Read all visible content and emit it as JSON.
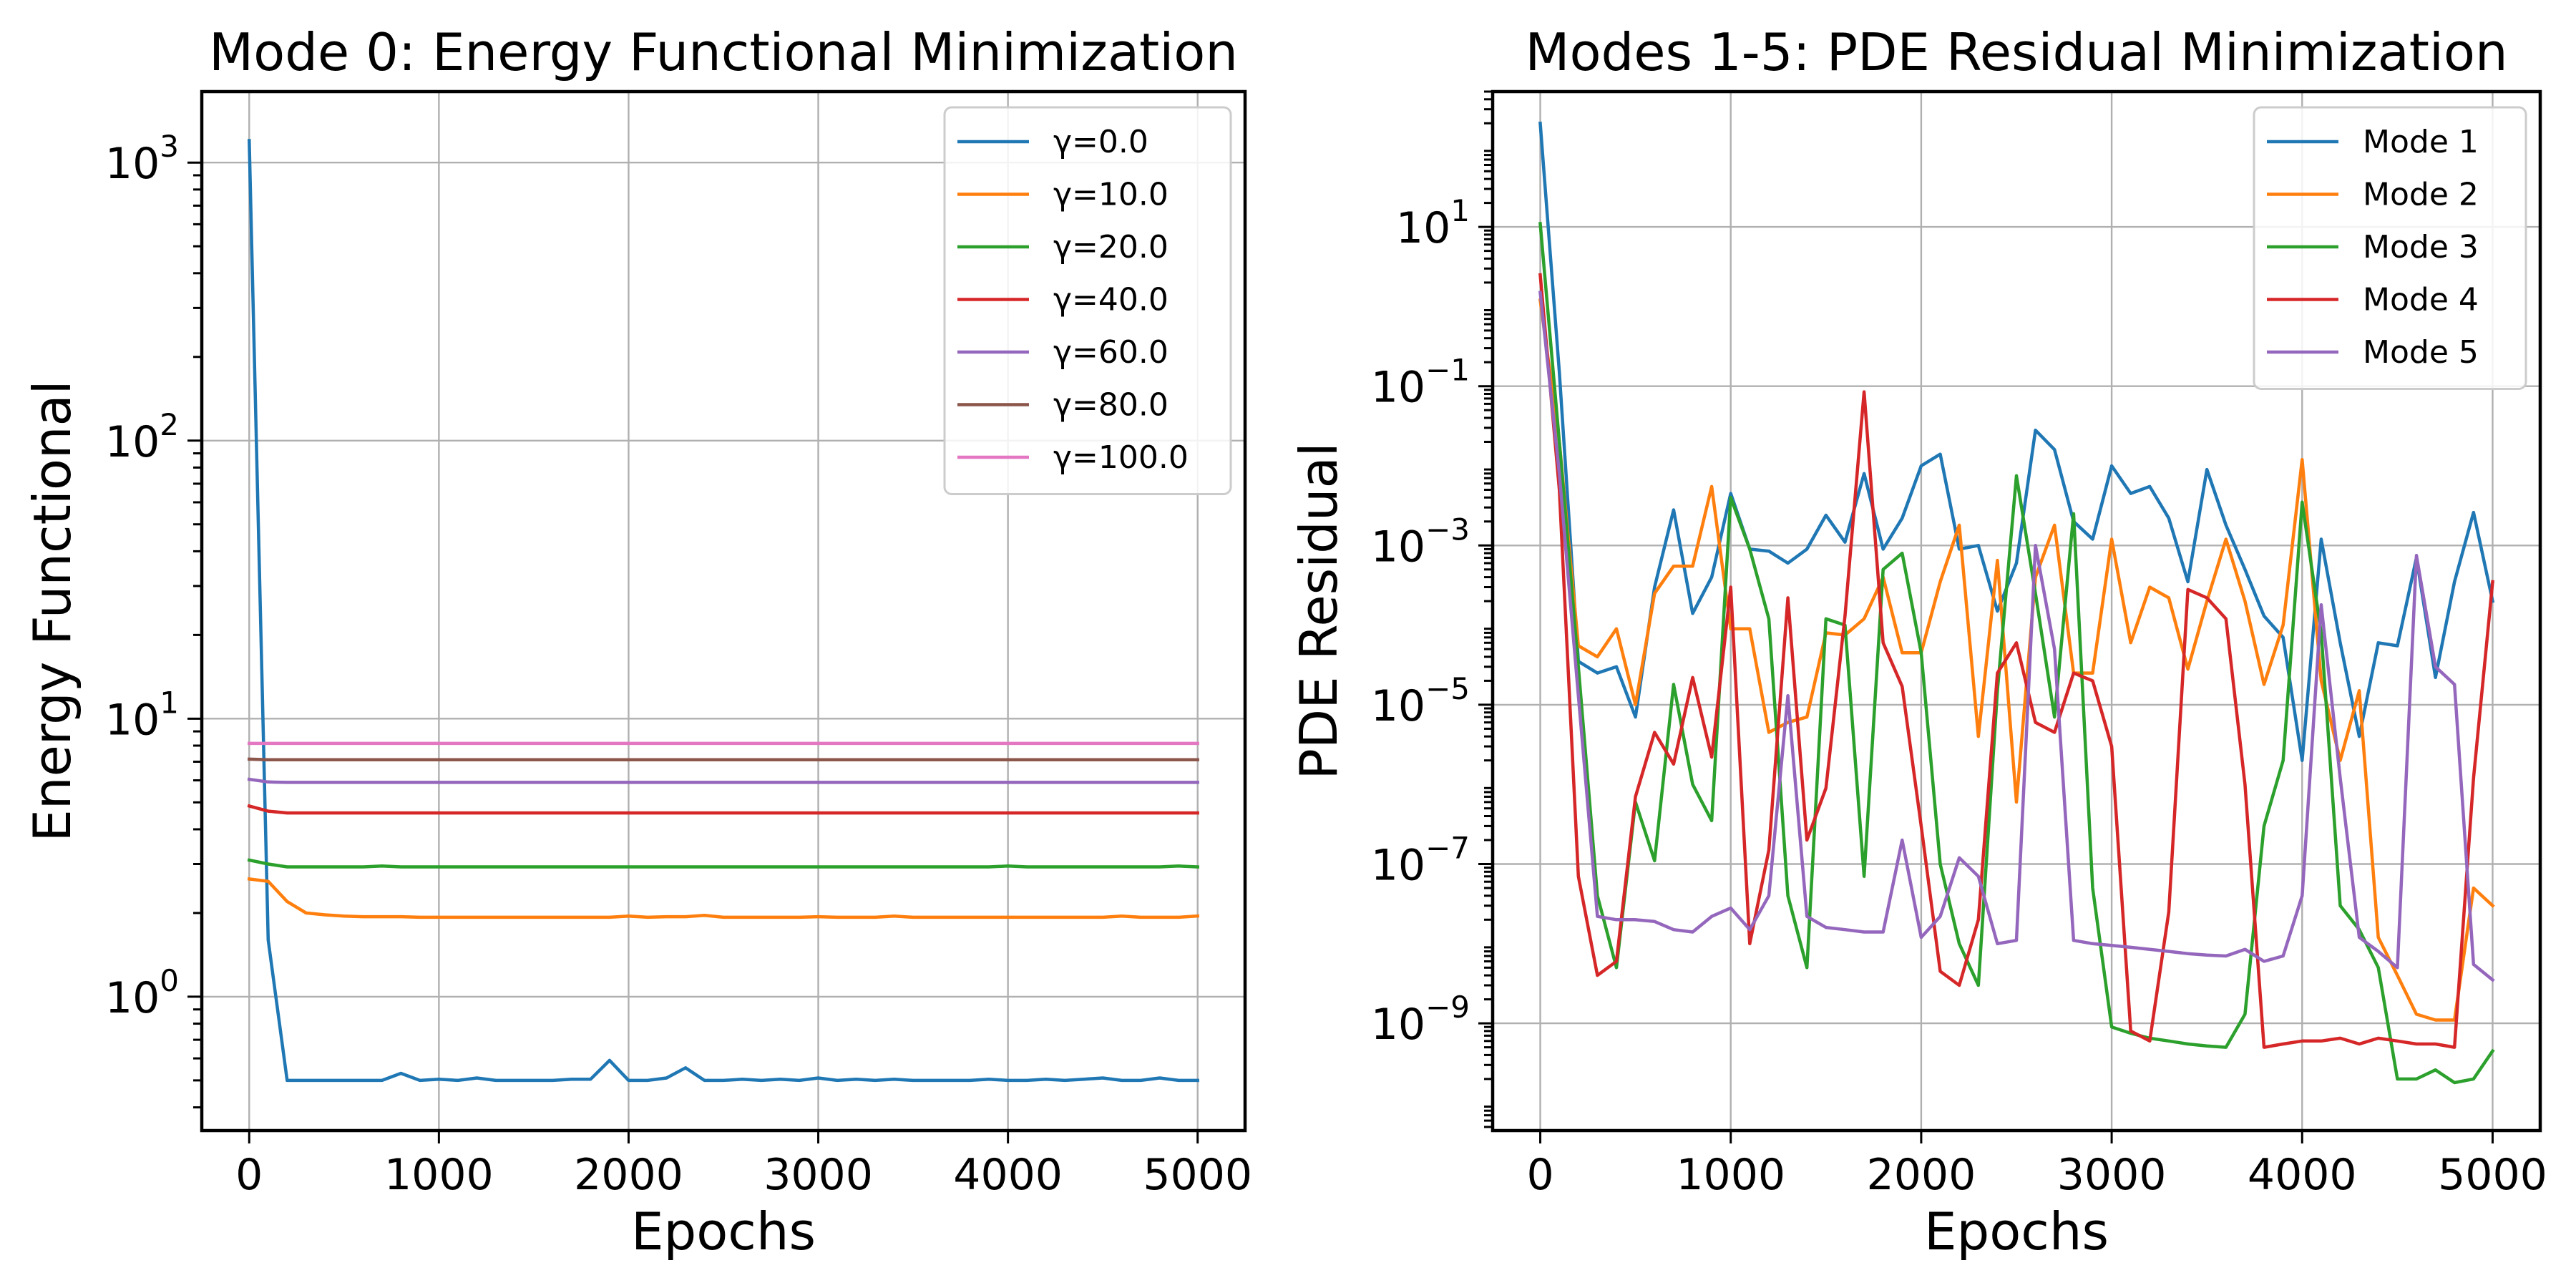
{
  "chart_data": [
    {
      "type": "line",
      "title": "Mode 0: Energy Functional Minimization",
      "xlabel": "Epochs",
      "ylabel": "Energy Functional",
      "yscale": "log",
      "xlim": [
        -250,
        5250
      ],
      "ylim": [
        0.33,
        1800
      ],
      "xticks": [
        0,
        1000,
        2000,
        3000,
        4000,
        5000
      ],
      "xtick_labels": [
        "0",
        "1000",
        "2000",
        "3000",
        "4000",
        "5000"
      ],
      "yticks_exp": [
        0,
        1,
        2,
        3
      ],
      "grid": true,
      "legend_position": "top-right",
      "x": [
        0,
        100,
        200,
        300,
        400,
        500,
        600,
        700,
        800,
        900,
        1000,
        1100,
        1200,
        1300,
        1400,
        1500,
        1600,
        1700,
        1800,
        1900,
        2000,
        2100,
        2200,
        2300,
        2400,
        2500,
        2600,
        2700,
        2800,
        2900,
        3000,
        3100,
        3200,
        3300,
        3400,
        3500,
        3600,
        3700,
        3800,
        3900,
        4000,
        4100,
        4200,
        4300,
        4400,
        4500,
        4600,
        4700,
        4800,
        4900,
        5000
      ],
      "series": [
        {
          "name": "γ=0.0",
          "color": "#1f77b4",
          "values": [
            1200,
            1.6,
            0.5,
            0.5,
            0.5,
            0.5,
            0.5,
            0.5,
            0.53,
            0.5,
            0.505,
            0.5,
            0.51,
            0.5,
            0.5,
            0.5,
            0.5,
            0.505,
            0.505,
            0.59,
            0.5,
            0.5,
            0.51,
            0.555,
            0.5,
            0.5,
            0.505,
            0.5,
            0.505,
            0.5,
            0.51,
            0.5,
            0.505,
            0.5,
            0.505,
            0.5,
            0.5,
            0.5,
            0.5,
            0.505,
            0.5,
            0.5,
            0.505,
            0.5,
            0.505,
            0.51,
            0.5,
            0.5,
            0.51,
            0.5,
            0.5
          ]
        },
        {
          "name": "γ=10.0",
          "color": "#ff7f0e",
          "values": [
            2.65,
            2.6,
            2.2,
            2.0,
            1.97,
            1.95,
            1.94,
            1.94,
            1.94,
            1.93,
            1.93,
            1.93,
            1.93,
            1.93,
            1.93,
            1.93,
            1.93,
            1.93,
            1.93,
            1.93,
            1.95,
            1.93,
            1.94,
            1.94,
            1.96,
            1.93,
            1.93,
            1.93,
            1.93,
            1.93,
            1.94,
            1.93,
            1.93,
            1.93,
            1.95,
            1.93,
            1.93,
            1.93,
            1.93,
            1.93,
            1.93,
            1.93,
            1.93,
            1.93,
            1.93,
            1.93,
            1.95,
            1.93,
            1.93,
            1.93,
            1.95
          ]
        },
        {
          "name": "γ=20.0",
          "color": "#2ca02c",
          "values": [
            3.1,
            3.0,
            2.93,
            2.93,
            2.93,
            2.93,
            2.93,
            2.95,
            2.93,
            2.93,
            2.93,
            2.93,
            2.93,
            2.93,
            2.93,
            2.93,
            2.93,
            2.93,
            2.93,
            2.93,
            2.93,
            2.93,
            2.93,
            2.93,
            2.93,
            2.93,
            2.93,
            2.93,
            2.93,
            2.93,
            2.93,
            2.93,
            2.93,
            2.93,
            2.93,
            2.93,
            2.93,
            2.93,
            2.93,
            2.93,
            2.95,
            2.93,
            2.93,
            2.93,
            2.93,
            2.93,
            2.93,
            2.93,
            2.93,
            2.95,
            2.93
          ]
        },
        {
          "name": "γ=40.0",
          "color": "#d62728",
          "values": [
            4.85,
            4.65,
            4.58,
            4.58,
            4.58,
            4.58,
            4.58,
            4.58,
            4.58,
            4.58,
            4.58,
            4.58,
            4.58,
            4.58,
            4.58,
            4.58,
            4.58,
            4.58,
            4.58,
            4.58,
            4.58,
            4.58,
            4.58,
            4.58,
            4.58,
            4.58,
            4.58,
            4.58,
            4.58,
            4.58,
            4.58,
            4.58,
            4.58,
            4.58,
            4.58,
            4.58,
            4.58,
            4.58,
            4.58,
            4.58,
            4.58,
            4.58,
            4.58,
            4.58,
            4.58,
            4.58,
            4.58,
            4.58,
            4.58,
            4.58,
            4.58
          ]
        },
        {
          "name": "γ=60.0",
          "color": "#9467bd",
          "values": [
            6.05,
            5.92,
            5.9,
            5.9,
            5.9,
            5.9,
            5.9,
            5.9,
            5.9,
            5.9,
            5.9,
            5.9,
            5.9,
            5.9,
            5.9,
            5.9,
            5.9,
            5.9,
            5.9,
            5.9,
            5.9,
            5.9,
            5.9,
            5.9,
            5.9,
            5.9,
            5.9,
            5.9,
            5.9,
            5.9,
            5.9,
            5.9,
            5.9,
            5.9,
            5.9,
            5.9,
            5.9,
            5.9,
            5.9,
            5.9,
            5.9,
            5.9,
            5.9,
            5.9,
            5.9,
            5.9,
            5.9,
            5.9,
            5.9,
            5.9,
            5.9
          ]
        },
        {
          "name": "γ=80.0",
          "color": "#8c564b",
          "values": [
            7.15,
            7.12,
            7.12,
            7.12,
            7.12,
            7.12,
            7.12,
            7.12,
            7.12,
            7.12,
            7.12,
            7.12,
            7.12,
            7.12,
            7.12,
            7.12,
            7.12,
            7.12,
            7.12,
            7.12,
            7.12,
            7.12,
            7.12,
            7.12,
            7.12,
            7.12,
            7.12,
            7.12,
            7.12,
            7.12,
            7.12,
            7.12,
            7.12,
            7.12,
            7.12,
            7.12,
            7.12,
            7.12,
            7.12,
            7.12,
            7.12,
            7.12,
            7.12,
            7.12,
            7.12,
            7.12,
            7.12,
            7.12,
            7.12,
            7.12,
            7.12
          ]
        },
        {
          "name": "γ=100.0",
          "color": "#e377c2",
          "values": [
            8.15,
            8.15,
            8.15,
            8.15,
            8.15,
            8.15,
            8.15,
            8.15,
            8.15,
            8.15,
            8.15,
            8.15,
            8.15,
            8.15,
            8.15,
            8.15,
            8.15,
            8.15,
            8.15,
            8.15,
            8.15,
            8.15,
            8.15,
            8.15,
            8.15,
            8.15,
            8.15,
            8.15,
            8.15,
            8.15,
            8.15,
            8.15,
            8.15,
            8.15,
            8.15,
            8.15,
            8.15,
            8.15,
            8.15,
            8.15,
            8.15,
            8.15,
            8.15,
            8.15,
            8.15,
            8.15,
            8.15,
            8.15,
            8.15,
            8.15,
            8.15
          ]
        }
      ]
    },
    {
      "type": "line",
      "title": "Modes 1-5: PDE Residual Minimization",
      "xlabel": "Epochs",
      "ylabel": "PDE Residual",
      "yscale": "log",
      "xlim": [
        -250,
        5250
      ],
      "ylim": [
        4.5e-11,
        500
      ],
      "xticks": [
        0,
        1000,
        2000,
        3000,
        4000,
        5000
      ],
      "xtick_labels": [
        "0",
        "1000",
        "2000",
        "3000",
        "4000",
        "5000"
      ],
      "yticks_exp": [
        -9,
        -7,
        -5,
        -3,
        -1,
        1
      ],
      "grid": true,
      "legend_position": "top-right",
      "x": [
        0,
        100,
        200,
        300,
        400,
        500,
        600,
        700,
        800,
        900,
        1000,
        1100,
        1200,
        1300,
        1400,
        1500,
        1600,
        1700,
        1800,
        1900,
        2000,
        2100,
        2200,
        2300,
        2400,
        2500,
        2600,
        2700,
        2800,
        2900,
        3000,
        3100,
        3200,
        3300,
        3400,
        3500,
        3600,
        3700,
        3800,
        3900,
        4000,
        4100,
        4200,
        4300,
        4400,
        4500,
        4600,
        4700,
        4800,
        4900,
        5000
      ],
      "series": [
        {
          "name": "Mode 1",
          "color": "#1f77b4",
          "values": [
            200,
            0.15,
            3.5e-05,
            2.5e-05,
            3e-05,
            7e-06,
            0.0003,
            0.0028,
            0.00014,
            0.0004,
            0.0045,
            0.0009,
            0.00085,
            0.0006,
            0.0009,
            0.0024,
            0.0011,
            0.008,
            0.0009,
            0.0022,
            0.01,
            0.014,
            0.0009,
            0.001,
            0.00015,
            0.0006,
            0.028,
            0.016,
            0.002,
            0.0012,
            0.01,
            0.0045,
            0.0055,
            0.0022,
            0.00035,
            0.009,
            0.0018,
            0.0005,
            0.00013,
            7e-05,
            2e-06,
            0.0012,
            6e-05,
            4e-06,
            6e-05,
            5.5e-05,
            0.0007,
            2.2e-05,
            0.00035,
            0.0026,
            0.0002
          ]
        },
        {
          "name": "Mode 2",
          "color": "#ff7f0e",
          "values": [
            1.2,
            0.02,
            5.5e-05,
            4e-05,
            9e-05,
            1e-05,
            0.00025,
            0.00055,
            0.00055,
            0.0055,
            9e-05,
            9e-05,
            4.5e-06,
            6e-06,
            7e-06,
            8e-05,
            7.5e-05,
            0.00012,
            0.0004,
            4.5e-05,
            4.5e-05,
            0.00035,
            0.0018,
            4e-06,
            0.00065,
            6e-07,
            0.0004,
            0.0018,
            2.5e-05,
            2.5e-05,
            0.0012,
            6e-05,
            0.0003,
            0.00022,
            2.8e-05,
            0.0002,
            0.0012,
            0.0002,
            1.8e-05,
            0.0001,
            0.012,
            2e-05,
            2e-06,
            1.5e-05,
            1.2e-08,
            4e-09,
            1.3e-09,
            1.1e-09,
            1.1e-09,
            5e-08,
            3e-08
          ]
        },
        {
          "name": "Mode 3",
          "color": "#2ca02c",
          "values": [
            11,
            0.02,
            3e-05,
            4e-08,
            5e-09,
            6e-07,
            1.1e-07,
            1.8e-05,
            1e-06,
            3.5e-07,
            0.004,
            0.0009,
            0.00012,
            4e-08,
            5e-09,
            0.00012,
            0.0001,
            7e-08,
            0.0005,
            0.0008,
            4.5e-05,
            1e-07,
            1e-08,
            3e-09,
            1.5e-05,
            0.0075,
            0.00025,
            7e-06,
            0.0025,
            5e-08,
            9e-10,
            7.5e-10,
            6.5e-10,
            6e-10,
            5.5e-10,
            5.2e-10,
            5e-10,
            1.3e-09,
            3e-07,
            2e-06,
            0.0035,
            8e-05,
            3e-08,
            1.5e-08,
            5e-09,
            2e-10,
            2e-10,
            2.6e-10,
            1.8e-10,
            2e-10,
            4.5e-10
          ]
        },
        {
          "name": "Mode 4",
          "color": "#d62728",
          "values": [
            2.5,
            0.005,
            7e-08,
            4e-09,
            6e-09,
            7e-07,
            4.5e-06,
            1.8e-06,
            2.2e-05,
            2.2e-06,
            0.0003,
            1e-08,
            1.5e-07,
            0.00022,
            2e-07,
            9e-07,
            0.00013,
            0.085,
            6e-05,
            1.7e-05,
            3e-07,
            4.5e-09,
            3e-09,
            2e-08,
            2.5e-05,
            6e-05,
            6e-06,
            4.5e-06,
            2.5e-05,
            2e-05,
            3e-06,
            8e-10,
            6e-10,
            2.5e-08,
            0.00028,
            0.00022,
            0.00012,
            1e-06,
            5e-10,
            5.5e-10,
            6e-10,
            6e-10,
            6.5e-10,
            5.5e-10,
            6.5e-10,
            6e-10,
            5.5e-10,
            5.5e-10,
            5e-10,
            1.2e-06,
            0.00035
          ]
        },
        {
          "name": "Mode 5",
          "color": "#9467bd",
          "values": [
            1.5,
            0.008,
            1.3e-05,
            2.2e-08,
            2e-08,
            2e-08,
            1.9e-08,
            1.5e-08,
            1.4e-08,
            2.2e-08,
            2.8e-08,
            1.5e-08,
            4e-08,
            1.3e-05,
            2.2e-08,
            1.6e-08,
            1.5e-08,
            1.4e-08,
            1.4e-08,
            2e-07,
            1.2e-08,
            2.2e-08,
            1.2e-07,
            7e-08,
            1e-08,
            1.1e-08,
            0.001,
            5e-05,
            1.1e-08,
            1e-08,
            9.5e-09,
            9e-09,
            8.5e-09,
            8e-09,
            7.5e-09,
            7.2e-09,
            7e-09,
            8.5e-09,
            6e-09,
            7e-09,
            4e-08,
            0.00018,
            1.2e-06,
            1.2e-08,
            8e-09,
            5e-09,
            0.00075,
            3e-05,
            1.8e-05,
            5.5e-09,
            3.5e-09
          ]
        }
      ]
    }
  ]
}
